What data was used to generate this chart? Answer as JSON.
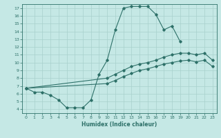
{
  "xlabel": "Humidex (Indice chaleur)",
  "bg_color": "#c5e8e5",
  "line_color": "#2d7068",
  "grid_color": "#a8d0cc",
  "xlim": [
    -0.5,
    23.5
  ],
  "ylim": [
    3.5,
    17.5
  ],
  "xticks": [
    0,
    1,
    2,
    3,
    4,
    5,
    6,
    7,
    8,
    9,
    10,
    11,
    12,
    13,
    14,
    15,
    16,
    17,
    18,
    19,
    20,
    21,
    22,
    23
  ],
  "yticks": [
    4,
    5,
    6,
    7,
    8,
    9,
    10,
    11,
    12,
    13,
    14,
    15,
    16,
    17
  ],
  "line1_x": [
    0,
    1,
    2,
    3,
    4,
    5,
    6,
    7,
    8,
    9,
    10,
    11,
    12,
    13,
    14,
    15,
    16,
    17,
    18,
    19
  ],
  "line1_y": [
    6.7,
    6.2,
    6.2,
    5.8,
    5.2,
    4.2,
    4.2,
    4.2,
    5.2,
    8.5,
    10.3,
    14.2,
    17.0,
    17.2,
    17.2,
    17.2,
    16.2,
    14.2,
    14.7,
    12.7
  ],
  "line2_x": [
    0,
    10,
    11,
    12,
    13,
    14,
    15,
    16,
    17,
    18,
    19,
    20,
    21,
    22,
    23
  ],
  "line2_y": [
    6.7,
    8.0,
    8.5,
    9.0,
    9.5,
    9.8,
    10.0,
    10.3,
    10.7,
    11.0,
    11.2,
    11.2,
    11.0,
    11.2,
    10.3
  ],
  "line3_x": [
    0,
    10,
    11,
    12,
    13,
    14,
    15,
    16,
    17,
    18,
    19,
    20,
    21,
    22,
    23
  ],
  "line3_y": [
    6.7,
    7.3,
    7.7,
    8.2,
    8.6,
    9.0,
    9.2,
    9.5,
    9.8,
    10.0,
    10.2,
    10.3,
    10.1,
    10.3,
    9.5
  ]
}
